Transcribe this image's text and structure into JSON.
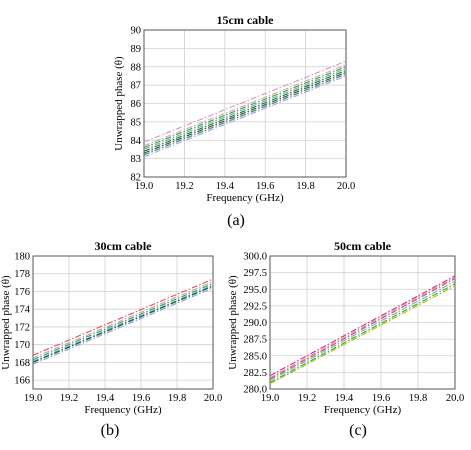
{
  "figure": {
    "captions": [
      "(a)",
      "(b)",
      "(c)"
    ]
  },
  "chart_data": [
    {
      "type": "line",
      "title": "15cm cable",
      "xlabel": "Frequency (GHz)",
      "ylabel": "Unwrapped phase (θ)",
      "xlim": [
        19.0,
        20.0
      ],
      "ylim": [
        82,
        90
      ],
      "xticks": [
        "19.0",
        "19.2",
        "19.4",
        "19.6",
        "19.8",
        "20.0"
      ],
      "yticks": [
        "82",
        "83",
        "84",
        "85",
        "86",
        "87",
        "88",
        "89",
        "90"
      ],
      "grid": true,
      "x": [
        19.0,
        20.0
      ],
      "series": [
        {
          "color": "#cc99cc",
          "values": [
            83.9,
            88.3
          ]
        },
        {
          "color": "#e8a0a0",
          "values": [
            83.7,
            88.1
          ]
        },
        {
          "color": "#33aa33",
          "values": [
            83.6,
            88.0
          ]
        },
        {
          "color": "#6fa8dc",
          "values": [
            83.5,
            87.9
          ]
        },
        {
          "color": "#1a7a1a",
          "values": [
            83.4,
            87.8
          ]
        },
        {
          "color": "#444444",
          "values": [
            83.3,
            87.7
          ]
        },
        {
          "color": "#3a8f5a",
          "values": [
            83.2,
            87.6
          ]
        },
        {
          "color": "#a0a0ff",
          "values": [
            83.1,
            87.5
          ]
        }
      ]
    },
    {
      "type": "line",
      "title": "30cm cable",
      "xlabel": "Frequency (GHz)",
      "ylabel": "Unwrapped phase (θ)",
      "xlim": [
        19.0,
        20.0
      ],
      "ylim": [
        165,
        180
      ],
      "xticks": [
        "19.0",
        "19.2",
        "19.4",
        "19.6",
        "19.8",
        "20.0"
      ],
      "yticks": [
        "166",
        "168",
        "170",
        "172",
        "174",
        "176",
        "178",
        "180"
      ],
      "grid": true,
      "x": [
        19.0,
        20.0
      ],
      "series": [
        {
          "color": "#e05050",
          "values": [
            168.8,
            177.4
          ]
        },
        {
          "color": "#cc99cc",
          "values": [
            168.5,
            177.1
          ]
        },
        {
          "color": "#33aa33",
          "values": [
            168.3,
            176.9
          ]
        },
        {
          "color": "#2ab0c8",
          "values": [
            168.1,
            176.7
          ]
        },
        {
          "color": "#444444",
          "values": [
            168.0,
            176.6
          ]
        },
        {
          "color": "#6fa8dc",
          "values": [
            167.8,
            176.4
          ]
        }
      ]
    },
    {
      "type": "line",
      "title": "50cm cable",
      "xlabel": "Frequency (GHz)",
      "ylabel": "Unwrapped phase (θ)",
      "xlim": [
        19.0,
        20.0
      ],
      "ylim": [
        280.0,
        300.0
      ],
      "xticks": [
        "19.0",
        "19.2",
        "19.4",
        "19.6",
        "19.8",
        "20.0"
      ],
      "yticks": [
        "280.0",
        "282.5",
        "285.0",
        "287.5",
        "290.0",
        "292.5",
        "295.0",
        "297.5",
        "300.0"
      ],
      "grid": true,
      "x": [
        19.0,
        20.0
      ],
      "series": [
        {
          "color": "#cc3366",
          "values": [
            282.0,
            297.0
          ]
        },
        {
          "color": "#cc99cc",
          "values": [
            281.7,
            296.8
          ]
        },
        {
          "color": "#e05050",
          "values": [
            281.5,
            296.6
          ]
        },
        {
          "color": "#6fa8dc",
          "values": [
            281.3,
            296.2
          ]
        },
        {
          "color": "#33aa33",
          "values": [
            281.0,
            295.8
          ]
        },
        {
          "color": "#b5c400",
          "values": [
            280.8,
            295.5
          ]
        }
      ]
    }
  ]
}
